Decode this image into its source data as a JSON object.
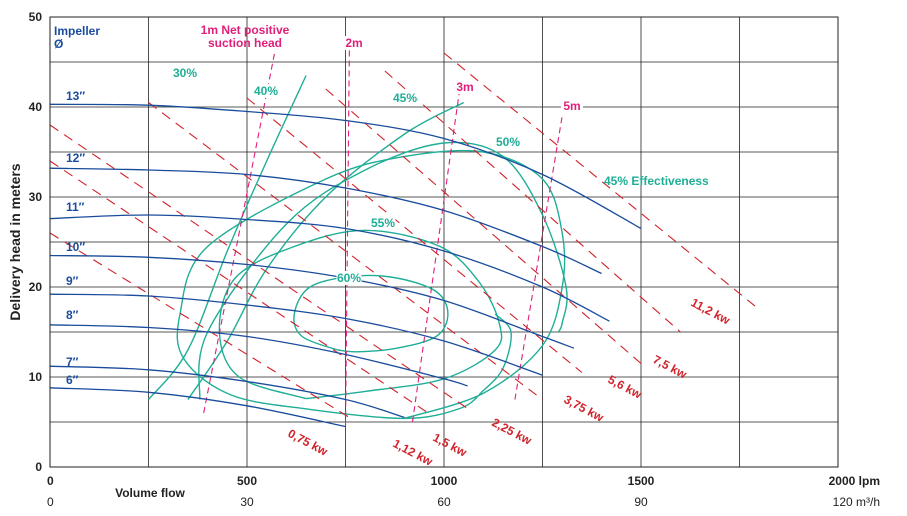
{
  "chart_data": {
    "type": "line",
    "ylabel": "Delivery head in meters",
    "xlabel": "Volume flow",
    "x_unit_primary": "lpm",
    "x_unit_secondary": "m³/h",
    "xlim": [
      0,
      2000
    ],
    "ylim": [
      0,
      50
    ],
    "x_ticks": [
      "0",
      "500",
      "1000",
      "1500",
      "2000 lpm"
    ],
    "x_ticks_secondary": [
      "0",
      "30",
      "60",
      "90",
      "120 m³/h"
    ],
    "y_ticks": [
      "0",
      "10",
      "20",
      "30",
      "40",
      "50"
    ],
    "grid": true,
    "impeller_title": "Impeller",
    "impeller_symbol": "Ø",
    "impeller_curves": [
      {
        "name": "13″",
        "x": [
          0,
          250,
          500,
          750,
          1000,
          1250,
          1500
        ],
        "y": [
          40.3,
          40.2,
          39.5,
          38.5,
          36.5,
          32.5,
          26.5
        ]
      },
      {
        "name": "12″",
        "x": [
          0,
          250,
          500,
          750,
          1000,
          1250,
          1400
        ],
        "y": [
          33.2,
          33.0,
          32.5,
          31.0,
          28.5,
          24.5,
          21.5
        ]
      },
      {
        "name": "11″",
        "x": [
          0,
          250,
          500,
          750,
          1000,
          1250,
          1420
        ],
        "y": [
          27.6,
          28.0,
          27.5,
          26.5,
          24.0,
          20.0,
          16.2
        ]
      },
      {
        "name": "10″",
        "x": [
          0,
          250,
          500,
          750,
          1000,
          1250,
          1330
        ],
        "y": [
          23.5,
          23.3,
          22.5,
          21.0,
          18.5,
          14.5,
          13.2
        ]
      },
      {
        "name": "9″",
        "x": [
          0,
          250,
          500,
          750,
          1000,
          1250
        ],
        "y": [
          19.2,
          19.0,
          18.0,
          16.5,
          14.0,
          10.2
        ]
      },
      {
        "name": "8″",
        "x": [
          0,
          250,
          500,
          750,
          1000,
          1060
        ],
        "y": [
          15.8,
          15.5,
          14.5,
          12.5,
          9.8,
          9.0
        ]
      },
      {
        "name": "7″",
        "x": [
          0,
          250,
          500,
          750,
          900
        ],
        "y": [
          11.2,
          10.8,
          9.5,
          7.5,
          5.5
        ]
      },
      {
        "name": "6″",
        "x": [
          0,
          250,
          500,
          750
        ],
        "y": [
          8.8,
          8.3,
          6.8,
          4.5
        ]
      }
    ],
    "effectiveness_curves": [
      {
        "name": "30%",
        "label": "30%",
        "x": [
          250,
          350,
          450,
          550,
          650
        ],
        "y": [
          7.5,
          13,
          24,
          34,
          43.5
        ]
      },
      {
        "name": "40%",
        "label": "40%",
        "x": [
          350,
          450,
          550,
          700,
          900,
          1050
        ],
        "y": [
          7.5,
          14,
          22,
          30,
          37,
          40.5
        ]
      },
      {
        "name": "45%",
        "label": "45%",
        "x": [
          380,
          400,
          600,
          800,
          1000,
          1150,
          1250,
          1310,
          1300,
          1290
        ],
        "y": [
          7.5,
          15,
          27,
          33,
          36,
          34.5,
          28,
          20,
          16,
          15
        ]
      },
      {
        "name": "50%",
        "label": "50%",
        "x": [
          900,
          1100,
          1250,
          1300,
          1300,
          1250,
          1100,
          900,
          700,
          400,
          330,
          340,
          460,
          660,
          900,
          1040,
          1100,
          1150,
          1170,
          1130
        ],
        "y": [
          5.4,
          8.2,
          13.5,
          20,
          26,
          32,
          35,
          34.5,
          32,
          24.5,
          17,
          12,
          8,
          6.4,
          5.4,
          6.5,
          8.5,
          11,
          15,
          17
        ]
      },
      {
        "name": "55%",
        "label": "55%",
        "x": [
          650,
          480,
          430,
          470,
          620,
          800,
          990,
          1090,
          1140,
          1130,
          1000,
          800,
          650
        ],
        "y": [
          7.6,
          10,
          15,
          21,
          24.5,
          26.3,
          24.5,
          20.5,
          16,
          13,
          9.8,
          8.4,
          7.6
        ]
      },
      {
        "name": "60%",
        "label": "60%",
        "x": [
          730,
          640,
          620,
          660,
          770,
          880,
          980,
          1010,
          980,
          880,
          780,
          730
        ],
        "y": [
          13,
          14.5,
          17,
          20,
          21.2,
          21,
          19.5,
          17,
          14.5,
          13.2,
          12.8,
          13
        ]
      }
    ],
    "npsh_lines": [
      {
        "name": "1m",
        "label": "1m Net positive suction head",
        "x": [
          390,
          570
        ],
        "y": [
          6,
          46
        ]
      },
      {
        "name": "2m",
        "label": "2m",
        "x": [
          750,
          760
        ],
        "y": [
          4.5,
          47
        ]
      },
      {
        "name": "3m",
        "label": "3m",
        "x": [
          920,
          1040
        ],
        "y": [
          5,
          42
        ]
      },
      {
        "name": "5m",
        "label": "5m",
        "x": [
          1180,
          1300
        ],
        "y": [
          7.5,
          39
        ]
      }
    ],
    "power_lines": [
      {
        "name": "0,75 kw",
        "label": "0,75 kw",
        "x": [
          0,
          760
        ],
        "y": [
          26,
          5.5
        ]
      },
      {
        "name": "1,12 kw",
        "label": "1,12 kw",
        "x": [
          0,
          960
        ],
        "y": [
          34,
          6.0
        ]
      },
      {
        "name": "1,5 kw",
        "label": "1,5 kw",
        "x": [
          0,
          1060
        ],
        "y": [
          38,
          6.5
        ]
      },
      {
        "name": "2,25 kw",
        "label": "2,25 kw",
        "x": [
          250,
          1250
        ],
        "y": [
          40.5,
          7.5
        ]
      },
      {
        "name": "3,75 kw",
        "label": "3,75 kw",
        "x": [
          500,
          1350
        ],
        "y": [
          41,
          10.5
        ]
      },
      {
        "name": "5,6 kw",
        "label": "5,6 kw",
        "x": [
          700,
          1500
        ],
        "y": [
          42,
          11.5
        ]
      },
      {
        "name": "7,5 kw",
        "label": "7,5 kw",
        "x": [
          850,
          1600
        ],
        "y": [
          44,
          15
        ]
      },
      {
        "name": "11,2 kw",
        "label": "11,2 kw",
        "x": [
          1000,
          1800
        ],
        "y": [
          46,
          17.5
        ]
      }
    ],
    "annotation": "45% Effectiveness",
    "colors": {
      "impeller": "#1a4c9c",
      "effectiveness": "#1fae96",
      "npsh": "#e0207a",
      "power": "#d0232b",
      "grid": "#222222"
    }
  }
}
